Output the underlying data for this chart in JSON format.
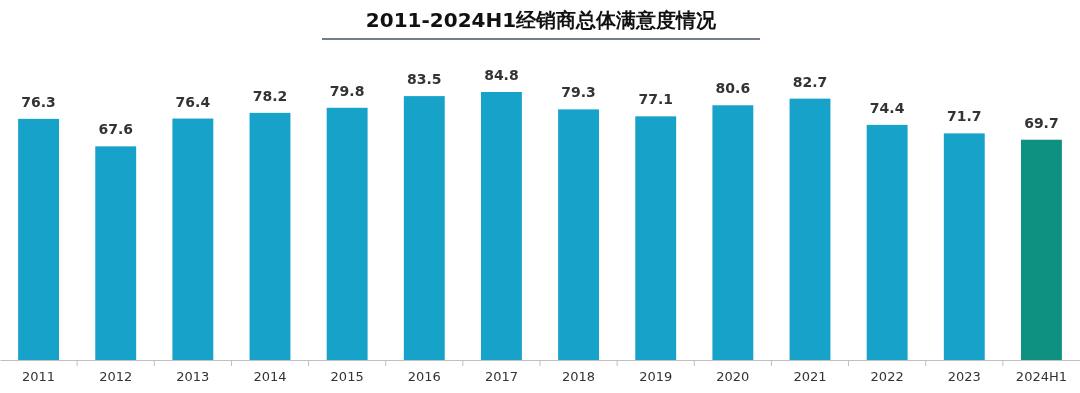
{
  "chart_data": {
    "type": "bar",
    "title": "2011-2024H1经销商总体满意度情况",
    "categories": [
      "2011",
      "2012",
      "2013",
      "2014",
      "2015",
      "2016",
      "2017",
      "2018",
      "2019",
      "2020",
      "2021",
      "2022",
      "2023",
      "2024H1"
    ],
    "values": [
      76.3,
      67.6,
      76.4,
      78.2,
      79.8,
      83.5,
      84.8,
      79.3,
      77.1,
      80.6,
      82.7,
      74.4,
      71.7,
      69.7
    ],
    "colors": [
      "#17a2c9",
      "#17a2c9",
      "#17a2c9",
      "#17a2c9",
      "#17a2c9",
      "#17a2c9",
      "#17a2c9",
      "#17a2c9",
      "#17a2c9",
      "#17a2c9",
      "#17a2c9",
      "#17a2c9",
      "#17a2c9",
      "#0e9180"
    ],
    "data_labels": true
  }
}
